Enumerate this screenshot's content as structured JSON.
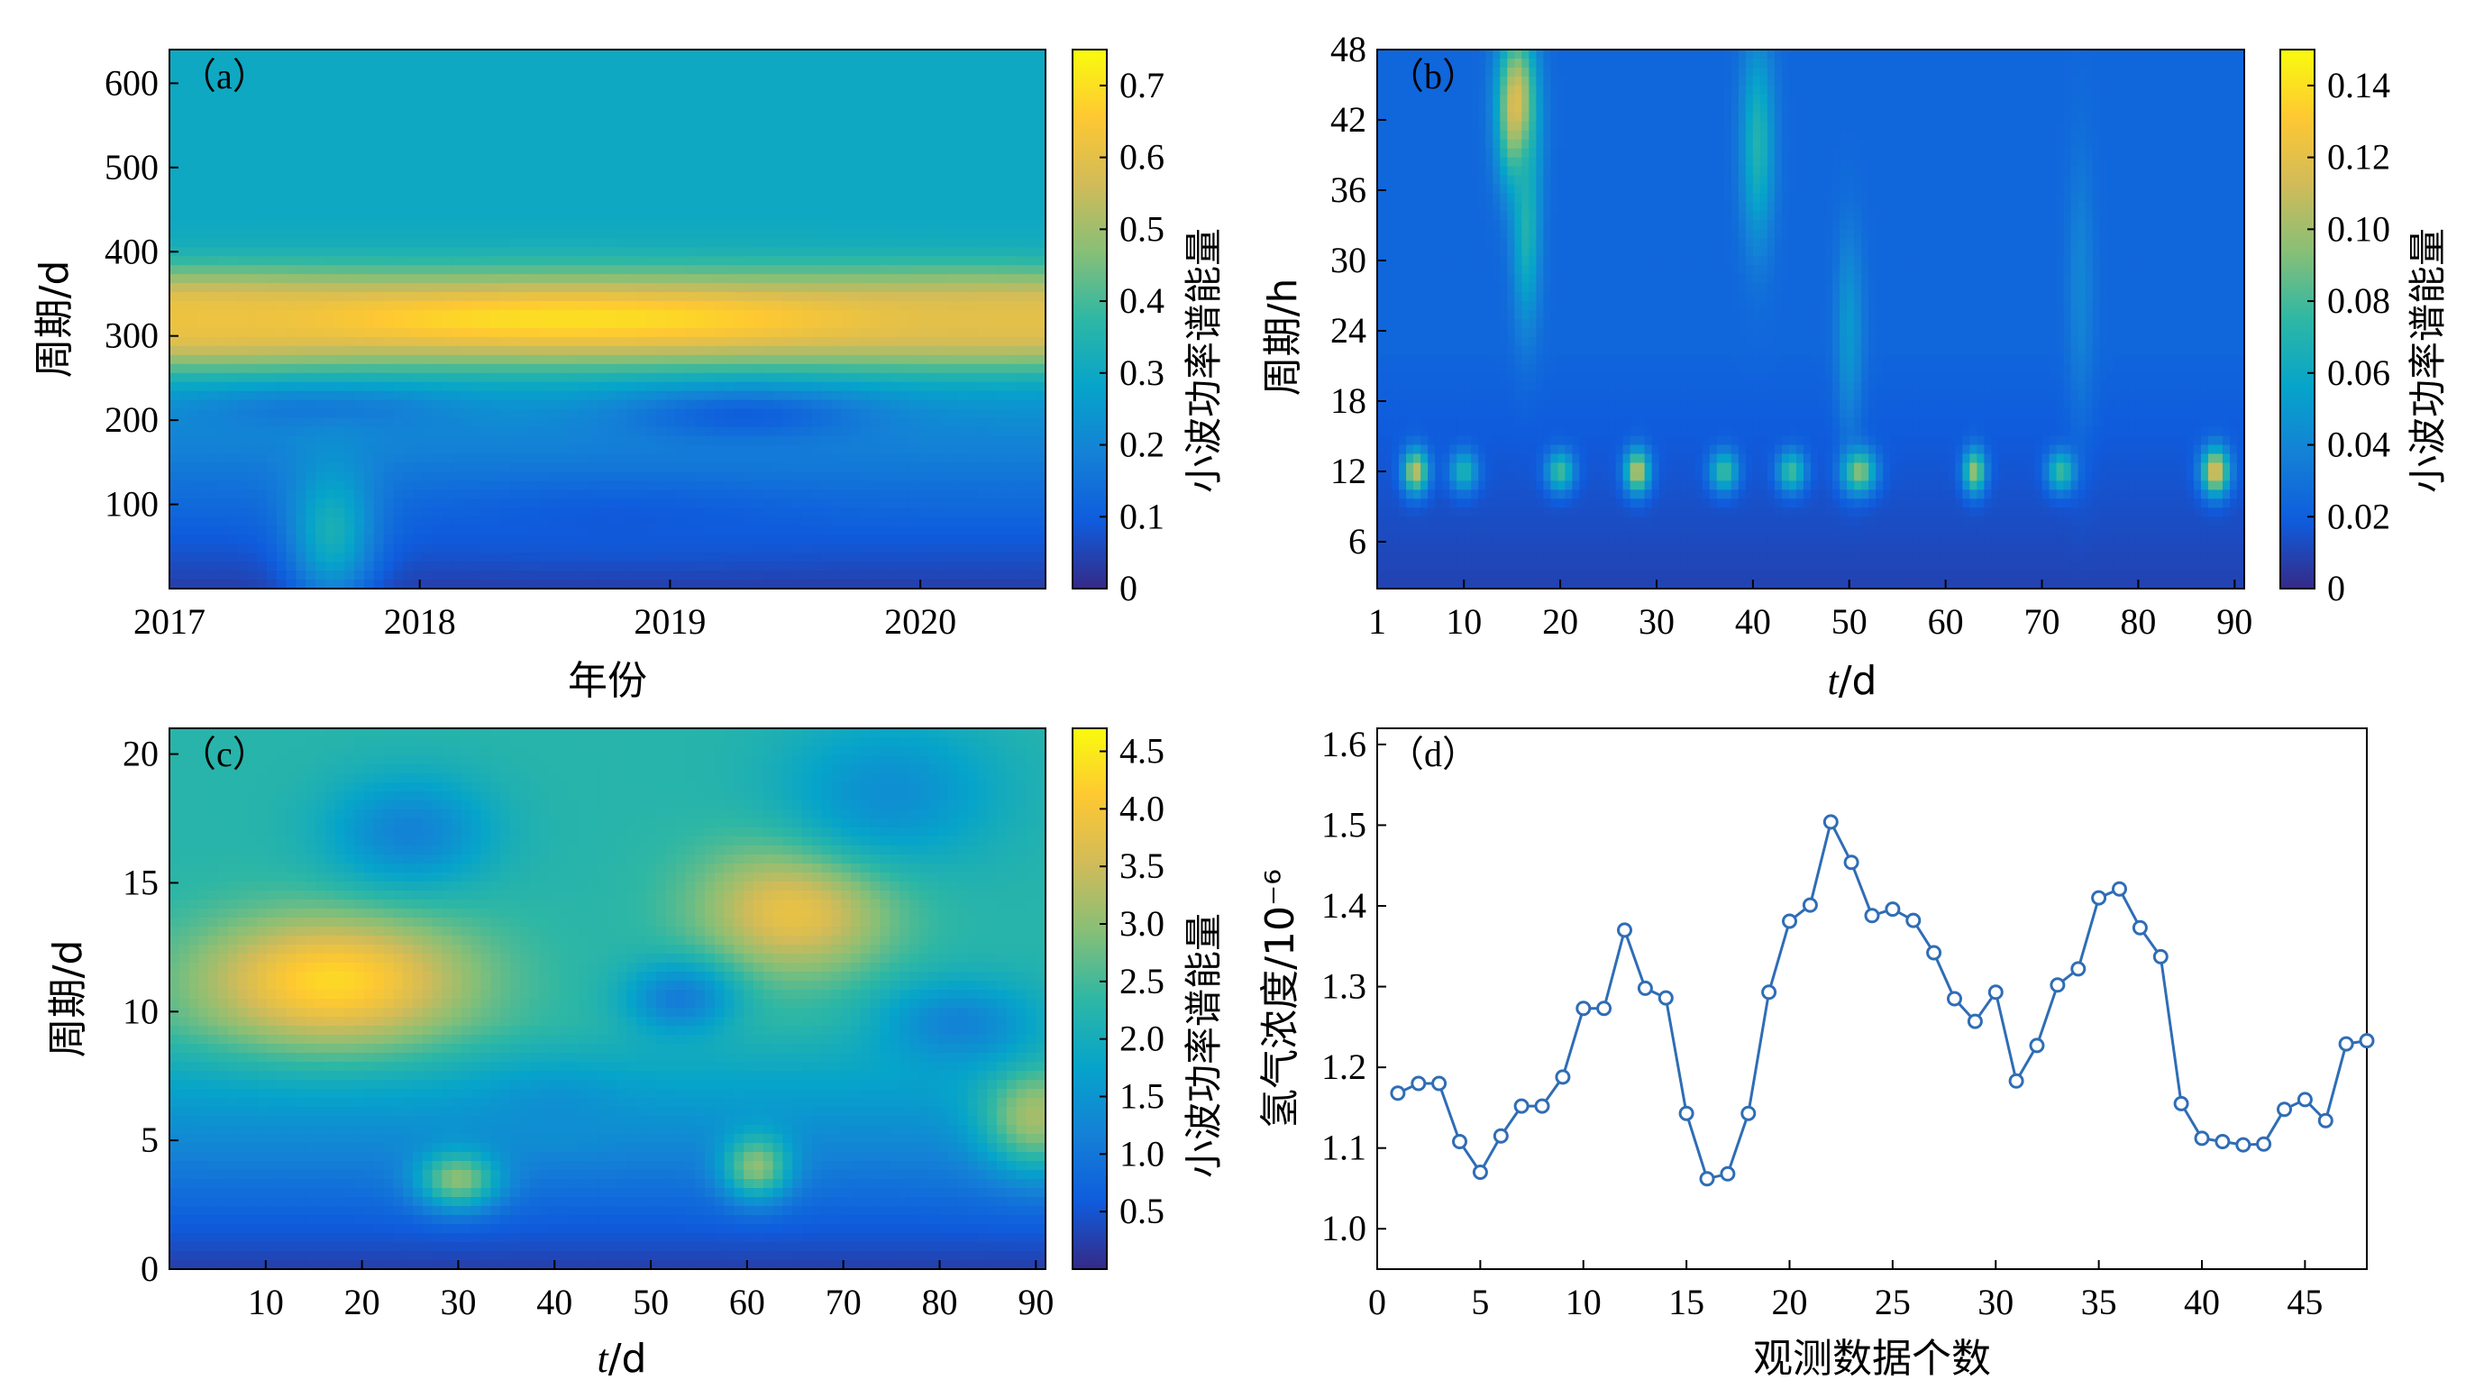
{
  "colors": {
    "line": "#2f6db5",
    "cmap": [
      "#352a87",
      "#0f5cdd",
      "#1481d6",
      "#06a4ca",
      "#2eb7a4",
      "#87bf77",
      "#d1bb59",
      "#fec832",
      "#f9fb0e"
    ]
  },
  "panels": {
    "a": {
      "tag": "（a）",
      "ylabel": "周期/d",
      "xlabel": "年份",
      "cblabel": "小波功率谱能量"
    },
    "b": {
      "tag": "（b）",
      "ylabel": "周期/h",
      "xlabel_italic": "t",
      "xlabel_rest": "/d",
      "cblabel": "小波功率谱能量"
    },
    "c": {
      "tag": "（c）",
      "ylabel": "周期/d",
      "xlabel_italic": "t",
      "xlabel_rest": "/d",
      "cblabel": "小波功率谱能量"
    },
    "d": {
      "tag": "（d）",
      "ylabel": "氢气浓度/10⁻⁶",
      "xlabel": "观测数据个数"
    }
  },
  "chart_data": [
    {
      "id": "a",
      "type": "heatmap",
      "xlabel": "年份",
      "ylabel": "周期/d",
      "colorbar_label": "小波功率谱能量",
      "xlim": [
        2017,
        2020.5
      ],
      "ylim": [
        0,
        640
      ],
      "xticks": [
        "2017",
        "2018",
        "2019",
        "2020"
      ],
      "xtick_values": [
        2017,
        2018,
        2019,
        2020
      ],
      "yticks": [
        "100",
        "200",
        "300",
        "400",
        "500",
        "600"
      ],
      "ytick_values": [
        100,
        200,
        300,
        400,
        500,
        600
      ],
      "colorbar_range": [
        0,
        0.75
      ],
      "colorbar_ticks": [
        "0",
        "0.1",
        "0.2",
        "0.3",
        "0.4",
        "0.5",
        "0.6",
        "0.7"
      ],
      "colorbar_tick_values": [
        0,
        0.1,
        0.2,
        0.3,
        0.4,
        0.5,
        0.6,
        0.7
      ],
      "features": [
        {
          "x": 2018.6,
          "y": 320,
          "sx": 1.9,
          "sy": 38,
          "v": 0.7
        },
        {
          "x": 2017.0,
          "y": 320,
          "sx": 0.5,
          "sy": 32,
          "v": 0.62
        },
        {
          "x": 2020.5,
          "y": 320,
          "sx": 0.6,
          "sy": 32,
          "v": 0.6
        },
        {
          "x": 2019.3,
          "y": 205,
          "sx": 0.35,
          "sy": 22,
          "v": 0.1
        },
        {
          "x": 2017.6,
          "y": 210,
          "sx": 0.35,
          "sy": 18,
          "v": 0.16
        },
        {
          "x": 2018.8,
          "y": 80,
          "sx": 0.5,
          "sy": 28,
          "v": 0.09
        },
        {
          "x": 2017.65,
          "y": 70,
          "sx": 0.12,
          "sy": 60,
          "v": 0.33
        }
      ]
    },
    {
      "id": "b",
      "type": "heatmap",
      "xlabel": "t/d",
      "ylabel": "周期/h",
      "colorbar_label": "小波功率谱能量",
      "xlim": [
        1,
        91
      ],
      "ylim": [
        2,
        48
      ],
      "xticks": [
        "1",
        "10",
        "20",
        "30",
        "40",
        "50",
        "60",
        "70",
        "80",
        "90"
      ],
      "xtick_values": [
        1,
        10,
        20,
        30,
        40,
        50,
        60,
        70,
        80,
        90
      ],
      "yticks": [
        "6",
        "12",
        "18",
        "24",
        "30",
        "36",
        "42",
        "48"
      ],
      "ytick_values": [
        6,
        12,
        18,
        24,
        30,
        36,
        42,
        48
      ],
      "colorbar_range": [
        0,
        0.15
      ],
      "colorbar_ticks": [
        "0",
        "0.02",
        "0.04",
        "0.06",
        "0.08",
        "0.10",
        "0.12",
        "0.14"
      ],
      "colorbar_tick_values": [
        0,
        0.02,
        0.04,
        0.06,
        0.08,
        0.1,
        0.12,
        0.14
      ],
      "features": [
        {
          "x": 15.5,
          "y": 43,
          "sx": 1.4,
          "sy": 4.5,
          "v": 0.125
        },
        {
          "x": 16.5,
          "y": 33,
          "sx": 1.0,
          "sy": 6,
          "v": 0.07
        },
        {
          "x": 40.5,
          "y": 40,
          "sx": 1.2,
          "sy": 6,
          "v": 0.07
        },
        {
          "x": 5,
          "y": 12,
          "sx": 0.9,
          "sy": 1.3,
          "v": 0.11
        },
        {
          "x": 28,
          "y": 12,
          "sx": 0.9,
          "sy": 1.3,
          "v": 0.11
        },
        {
          "x": 51,
          "y": 12,
          "sx": 1.2,
          "sy": 1.3,
          "v": 0.1
        },
        {
          "x": 63,
          "y": 12,
          "sx": 0.8,
          "sy": 1.3,
          "v": 0.1
        },
        {
          "x": 88,
          "y": 12,
          "sx": 1.0,
          "sy": 1.4,
          "v": 0.12
        },
        {
          "x": 20,
          "y": 12,
          "sx": 1.0,
          "sy": 1.2,
          "v": 0.08
        },
        {
          "x": 37,
          "y": 12,
          "sx": 1.0,
          "sy": 1.2,
          "v": 0.08
        },
        {
          "x": 44,
          "y": 12,
          "sx": 1.0,
          "sy": 1.2,
          "v": 0.08
        },
        {
          "x": 72,
          "y": 12,
          "sx": 1.0,
          "sy": 1.2,
          "v": 0.08
        },
        {
          "x": 10,
          "y": 12,
          "sx": 1.0,
          "sy": 1.2,
          "v": 0.07
        },
        {
          "x": 50,
          "y": 24,
          "sx": 1.0,
          "sy": 6,
          "v": 0.05
        },
        {
          "x": 74,
          "y": 28,
          "sx": 1.0,
          "sy": 8,
          "v": 0.04
        }
      ]
    },
    {
      "id": "c",
      "type": "heatmap",
      "xlabel": "t/d",
      "ylabel": "周期/d",
      "colorbar_label": "小波功率谱能量",
      "xlim": [
        0,
        91
      ],
      "ylim": [
        0,
        21
      ],
      "xticks": [
        "10",
        "20",
        "30",
        "40",
        "50",
        "60",
        "70",
        "80",
        "90"
      ],
      "xtick_values": [
        10,
        20,
        30,
        40,
        50,
        60,
        70,
        80,
        90
      ],
      "yticks": [
        "0",
        "5",
        "10",
        "15",
        "20"
      ],
      "ytick_values": [
        0,
        5,
        10,
        15,
        20
      ],
      "colorbar_range": [
        0,
        4.7
      ],
      "colorbar_ticks": [
        "0.5",
        "1.0",
        "1.5",
        "2.0",
        "2.5",
        "3.0",
        "3.5",
        "4.0",
        "4.5"
      ],
      "colorbar_tick_values": [
        0.5,
        1.0,
        1.5,
        2.0,
        2.5,
        3.0,
        3.5,
        4.0,
        4.5
      ],
      "features": [
        {
          "x": 17,
          "y": 11.2,
          "sx": 10,
          "sy": 1.8,
          "v": 4.3
        },
        {
          "x": 65,
          "y": 14.0,
          "sx": 7,
          "sy": 1.8,
          "v": 3.9
        },
        {
          "x": 90,
          "y": 6.0,
          "sx": 4,
          "sy": 1.5,
          "v": 3.2
        },
        {
          "x": 30,
          "y": 3.5,
          "sx": 3,
          "sy": 0.8,
          "v": 3.0
        },
        {
          "x": 61,
          "y": 4.0,
          "sx": 2.5,
          "sy": 0.9,
          "v": 3.0
        },
        {
          "x": 25,
          "y": 17.0,
          "sx": 6,
          "sy": 1.5,
          "v": 1.2
        },
        {
          "x": 53,
          "y": 10.5,
          "sx": 4,
          "sy": 1.0,
          "v": 1.1
        },
        {
          "x": 82,
          "y": 9.5,
          "sx": 6,
          "sy": 1.2,
          "v": 1.2
        },
        {
          "x": 40,
          "y": 6.0,
          "sx": 5,
          "sy": 1.0,
          "v": 1.4
        },
        {
          "x": 75,
          "y": 18.5,
          "sx": 8,
          "sy": 2.0,
          "v": 1.4
        }
      ]
    },
    {
      "id": "d",
      "type": "line",
      "xlabel": "观测数据个数",
      "ylabel": "氢气浓度/10⁻⁶",
      "xlim": [
        0,
        48
      ],
      "ylim": [
        0.95,
        1.62
      ],
      "xticks": [
        "0",
        "5",
        "10",
        "15",
        "20",
        "25",
        "30",
        "35",
        "40",
        "45"
      ],
      "xtick_values": [
        0,
        5,
        10,
        15,
        20,
        25,
        30,
        35,
        40,
        45
      ],
      "yticks": [
        "1.0",
        "1.1",
        "1.2",
        "1.3",
        "1.4",
        "1.5",
        "1.6"
      ],
      "ytick_values": [
        1.0,
        1.1,
        1.2,
        1.3,
        1.4,
        1.5,
        1.6
      ],
      "x": [
        1,
        2,
        3,
        4,
        5,
        6,
        7,
        8,
        9,
        10,
        11,
        12,
        13,
        14,
        15,
        16,
        17,
        18,
        19,
        20,
        21,
        22,
        23,
        24,
        25,
        26,
        27,
        28,
        29,
        30,
        31,
        32,
        33,
        34,
        35,
        36,
        37,
        38,
        39,
        40,
        41,
        42,
        43,
        44,
        45,
        46,
        47,
        48
      ],
      "y": [
        1.168,
        1.18,
        1.18,
        1.108,
        1.07,
        1.115,
        1.152,
        1.152,
        1.188,
        1.273,
        1.273,
        1.37,
        1.298,
        1.286,
        1.143,
        1.062,
        1.068,
        1.143,
        1.293,
        1.381,
        1.401,
        1.504,
        1.454,
        1.388,
        1.396,
        1.382,
        1.342,
        1.285,
        1.257,
        1.293,
        1.183,
        1.227,
        1.302,
        1.322,
        1.41,
        1.421,
        1.373,
        1.337,
        1.155,
        1.112,
        1.108,
        1.104,
        1.105,
        1.148,
        1.16,
        1.134,
        1.229,
        1.233
      ]
    }
  ]
}
